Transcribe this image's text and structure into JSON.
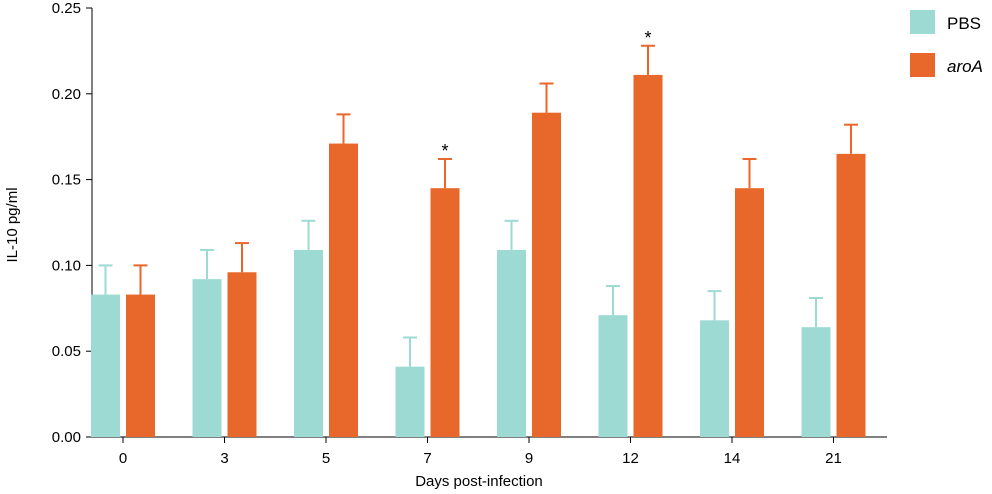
{
  "chart_data": {
    "type": "bar",
    "xlabel": "Days post-infection",
    "ylabel": "IL-10 pg/ml",
    "ylim": [
      0,
      0.25
    ],
    "yticks": [
      "0.00",
      "0.05",
      "0.10",
      "0.15",
      "0.20",
      "0.25"
    ],
    "categories": [
      "0",
      "3",
      "5",
      "7",
      "9",
      "12",
      "14",
      "21"
    ],
    "series": [
      {
        "name": "PBS",
        "color": "#9edad4",
        "italic": false,
        "values": [
          0.083,
          0.092,
          0.109,
          0.041,
          0.109,
          0.071,
          0.068,
          0.064
        ],
        "errors": [
          0.017,
          0.017,
          0.017,
          0.017,
          0.017,
          0.017,
          0.017,
          0.017
        ]
      },
      {
        "name": "aroA",
        "color": "#e8672a",
        "italic": true,
        "values": [
          0.083,
          0.096,
          0.171,
          0.145,
          0.189,
          0.211,
          0.145,
          0.165
        ],
        "errors": [
          0.017,
          0.017,
          0.017,
          0.017,
          0.017,
          0.017,
          0.017,
          0.017
        ]
      }
    ],
    "annotations": [
      {
        "text": "*",
        "category": "7",
        "series": "aroA"
      },
      {
        "text": "*",
        "category": "12",
        "series": "aroA"
      }
    ],
    "legend_position": "top-right",
    "grid": false
  }
}
